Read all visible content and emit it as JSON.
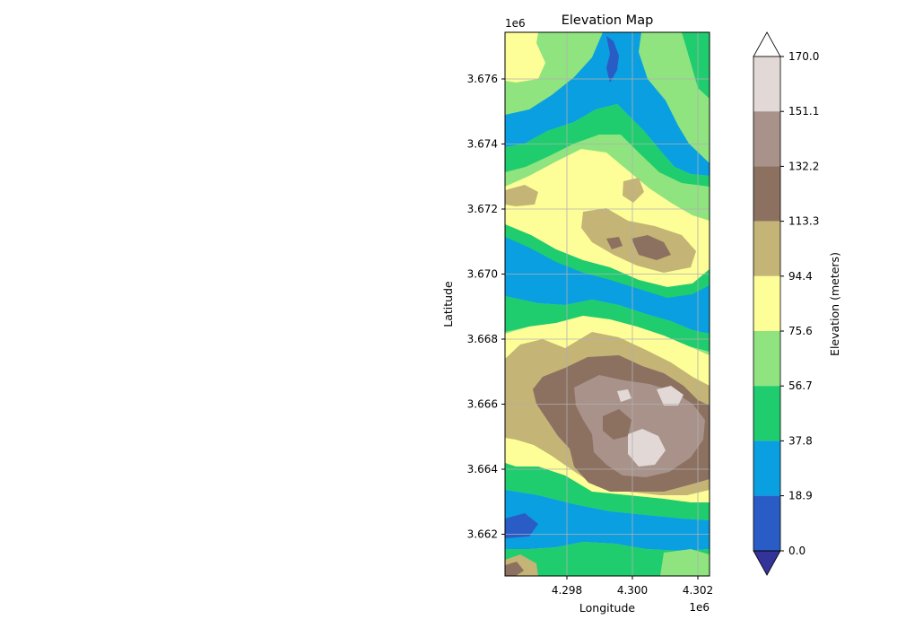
{
  "map": {
    "title": "Elevation Map",
    "xlabel": "Longitude",
    "ylabel": "Latitude",
    "x_offset_label": "1e6",
    "y_offset_label": "1e6",
    "x_ticks": [
      "4.298",
      "4.300",
      "4.302"
    ],
    "y_ticks": [
      "3.676",
      "3.674",
      "3.672",
      "3.670",
      "3.668",
      "3.666",
      "3.664",
      "3.662"
    ],
    "grid": true
  },
  "colorbar": {
    "label": "Elevation (meters)",
    "tick_labels": [
      "0.0",
      "18.9",
      "37.8",
      "56.7",
      "75.6",
      "94.4",
      "113.3",
      "132.2",
      "151.1",
      "170.0"
    ],
    "colors": [
      "#3b3ea8",
      "#2a5cc6",
      "#0a9fe0",
      "#1fcd6e",
      "#8fe47f",
      "#fefe98",
      "#c4b476",
      "#8c7060",
      "#a8928a",
      "#e2d9d6"
    ],
    "extend_low_color": "#33339a",
    "extend_high_color": "#ffffff"
  },
  "palette": {
    "deep_water": "#2a5cc6",
    "water": "#0a9fe0",
    "low_green": "#1fcd6e",
    "light_green": "#8fe47f",
    "yellow": "#fefe98",
    "tan": "#c4b476",
    "brown": "#8c7060",
    "mauve": "#a8928a",
    "peak": "#e2d9d6"
  }
}
